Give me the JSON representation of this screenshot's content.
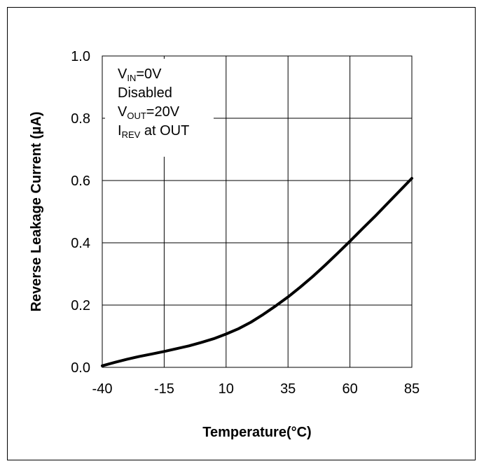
{
  "chart_data": {
    "type": "line",
    "xlabel": "Temperature(°C)",
    "ylabel": "Reverse Leakage Current (µA)",
    "xlim": [
      -40,
      85
    ],
    "ylim": [
      0.0,
      1.0
    ],
    "x_ticks": [
      -40,
      -15,
      10,
      35,
      60,
      85
    ],
    "x_tick_labels": [
      "-40",
      "-15",
      "10",
      "35",
      "60",
      "85"
    ],
    "y_ticks": [
      0.0,
      0.2,
      0.4,
      0.6,
      0.8,
      1.0
    ],
    "y_tick_labels": [
      "0.0",
      "0.2",
      "0.4",
      "0.6",
      "0.8",
      "1.0"
    ],
    "grid": true,
    "annotation_lines": [
      {
        "main": "V",
        "sub": "IN",
        "rest": "=0V"
      },
      {
        "main": "Disabled",
        "sub": "",
        "rest": ""
      },
      {
        "main": "V",
        "sub": "OUT",
        "rest": "=20V"
      },
      {
        "main": "I",
        "sub": "REV",
        "rest": " at OUT"
      }
    ],
    "series": [
      {
        "color": "#000000",
        "x": [
          -40,
          -35,
          -30,
          -25,
          -20,
          -15,
          -10,
          -5,
          0,
          5,
          10,
          15,
          20,
          25,
          30,
          35,
          40,
          45,
          50,
          55,
          60,
          65,
          70,
          75,
          80,
          85
        ],
        "y": [
          0.005,
          0.016,
          0.026,
          0.035,
          0.043,
          0.051,
          0.06,
          0.069,
          0.08,
          0.092,
          0.107,
          0.124,
          0.145,
          0.17,
          0.197,
          0.226,
          0.258,
          0.292,
          0.328,
          0.366,
          0.405,
          0.445,
          0.484,
          0.525,
          0.566,
          0.607
        ]
      }
    ]
  }
}
